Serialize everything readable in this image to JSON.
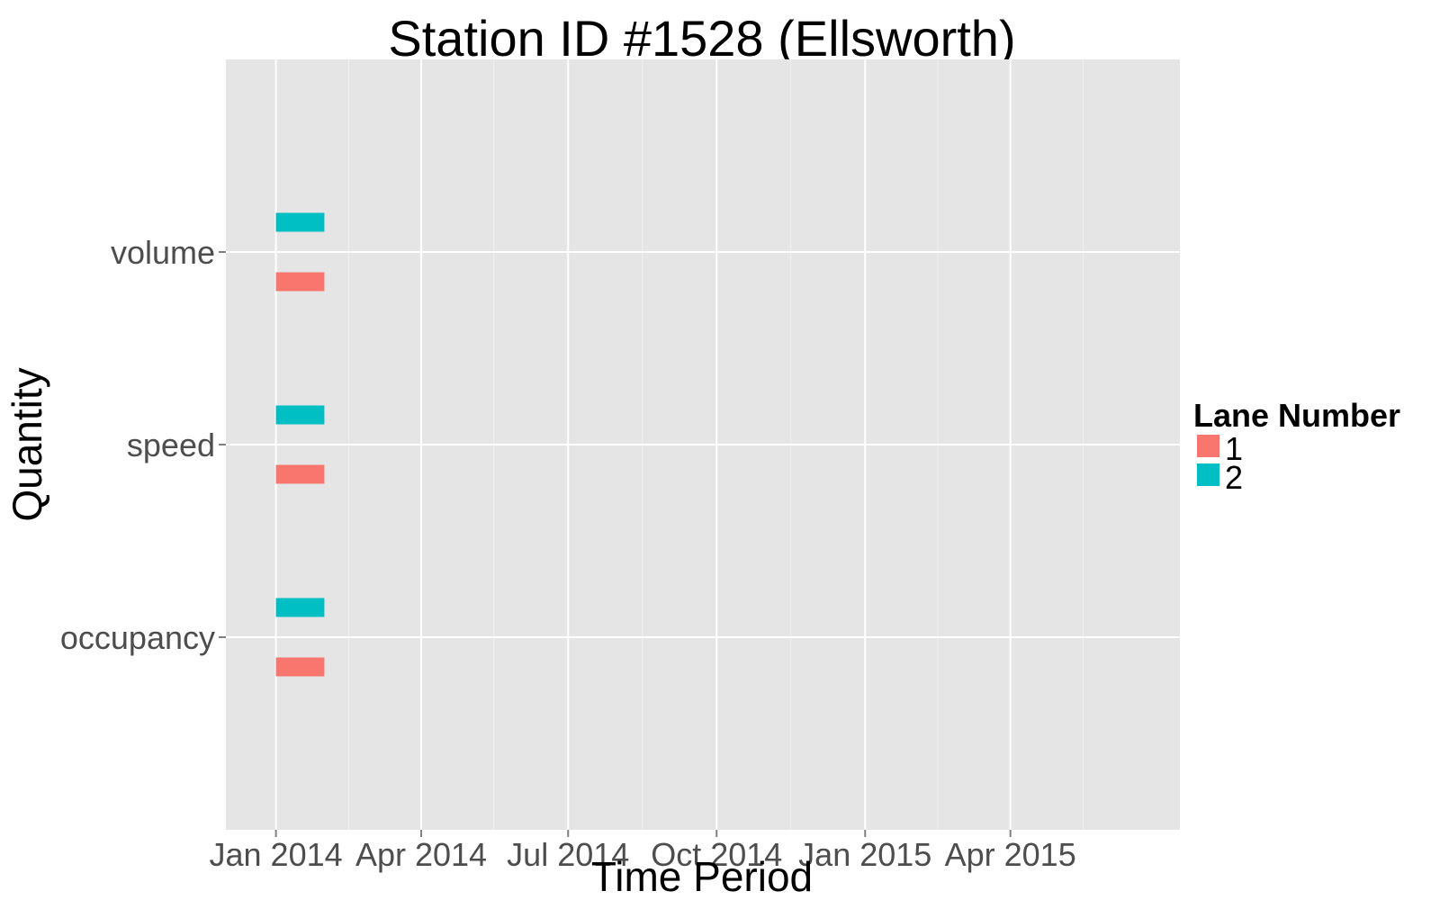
{
  "chart_data": {
    "type": "timeline",
    "title": "Station ID #1528 (Ellsworth)",
    "xlabel": "Time Period",
    "ylabel": "Quantity",
    "x_range": [
      "2013-12-01",
      "2015-07-15"
    ],
    "x_ticks": [
      {
        "date": "2014-01-01",
        "label": "Jan 2014"
      },
      {
        "date": "2014-04-01",
        "label": "Apr 2014"
      },
      {
        "date": "2014-07-01",
        "label": "Jul 2014"
      },
      {
        "date": "2014-10-01",
        "label": "Oct 2014"
      },
      {
        "date": "2015-01-01",
        "label": "Jan 2015"
      },
      {
        "date": "2015-04-01",
        "label": "Apr 2015"
      }
    ],
    "x_minor_ticks": [
      "2014-02-15",
      "2014-05-16",
      "2014-08-16",
      "2014-11-16",
      "2015-02-15",
      "2015-05-16"
    ],
    "categories": [
      "occupancy",
      "speed",
      "volume"
    ],
    "legend": {
      "title": "Lane Number",
      "position": "right"
    },
    "series": [
      {
        "name": "1",
        "color": "#F8766D",
        "segments": [
          {
            "quantity": "volume",
            "start": "2014-01-01",
            "end": "2014-01-31"
          },
          {
            "quantity": "speed",
            "start": "2014-01-01",
            "end": "2014-01-31"
          },
          {
            "quantity": "occupancy",
            "start": "2014-01-01",
            "end": "2014-01-31"
          }
        ]
      },
      {
        "name": "2",
        "color": "#00BFC4",
        "segments": [
          {
            "quantity": "volume",
            "start": "2014-01-01",
            "end": "2014-01-31"
          },
          {
            "quantity": "speed",
            "start": "2014-01-01",
            "end": "2014-01-31"
          },
          {
            "quantity": "occupancy",
            "start": "2014-01-01",
            "end": "2014-01-31"
          }
        ]
      }
    ]
  }
}
